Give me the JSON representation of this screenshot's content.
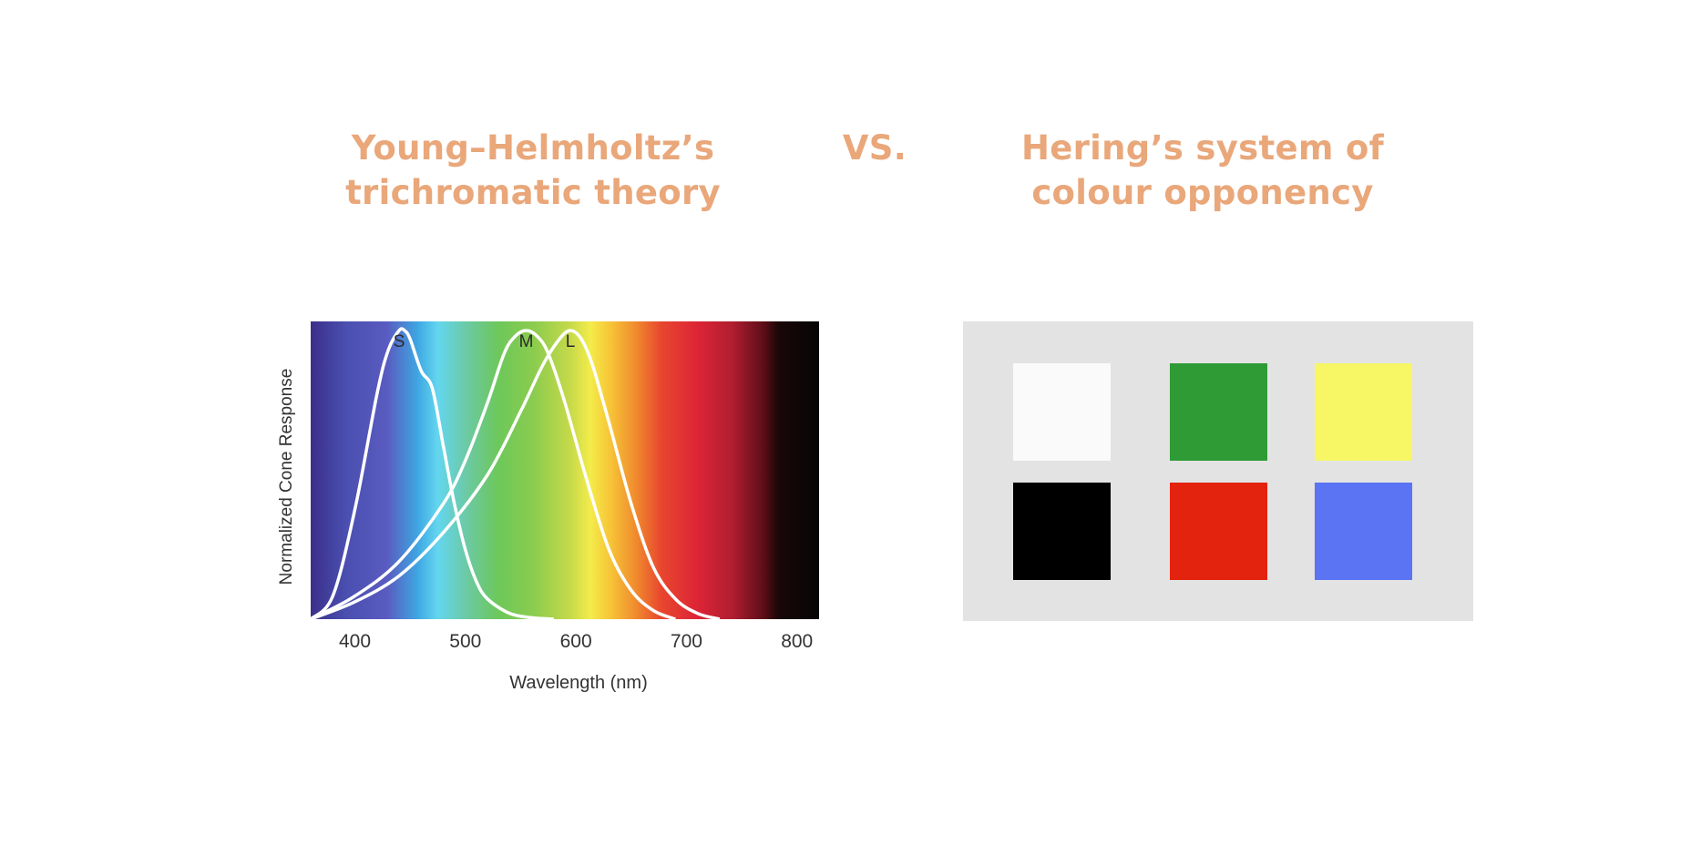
{
  "headings": {
    "left": [
      "Young–Helmholtz’s",
      "trichromatic theory"
    ],
    "vs": "VS.",
    "right": [
      "Hering’s system of",
      "colour opponency"
    ]
  },
  "chart_data": {
    "type": "line",
    "xlabel": "Wavelength (nm)",
    "ylabel": "Normalized Cone Response",
    "xlim": [
      360,
      820
    ],
    "ylim": [
      0,
      1
    ],
    "xticks": [
      400,
      500,
      600,
      700,
      800
    ],
    "background": "visible spectrum gradient",
    "grid": false,
    "line_color": "#ffffff",
    "series": [
      {
        "name": "S",
        "x": [
          360,
          380,
          400,
          420,
          430,
          440,
          445,
          450,
          460,
          470,
          480,
          490,
          500,
          510,
          520,
          540,
          560,
          580
        ],
        "y": [
          0.0,
          0.08,
          0.38,
          0.78,
          0.93,
          1.0,
          1.0,
          0.97,
          0.86,
          0.8,
          0.6,
          0.4,
          0.24,
          0.13,
          0.07,
          0.02,
          0.005,
          0.0
        ]
      },
      {
        "name": "M",
        "x": [
          360,
          400,
          440,
          480,
          500,
          520,
          535,
          545,
          555,
          565,
          575,
          590,
          610,
          630,
          650,
          670,
          690
        ],
        "y": [
          0.0,
          0.08,
          0.2,
          0.4,
          0.55,
          0.75,
          0.92,
          0.98,
          1.0,
          0.98,
          0.92,
          0.75,
          0.48,
          0.24,
          0.1,
          0.03,
          0.0
        ]
      },
      {
        "name": "L",
        "x": [
          360,
          400,
          440,
          480,
          520,
          550,
          570,
          585,
          595,
          605,
          615,
          630,
          650,
          670,
          690,
          710,
          730
        ],
        "y": [
          0.0,
          0.06,
          0.15,
          0.3,
          0.5,
          0.72,
          0.88,
          0.97,
          1.0,
          0.97,
          0.88,
          0.68,
          0.4,
          0.18,
          0.07,
          0.02,
          0.0
        ]
      }
    ]
  },
  "opponency_swatches": [
    {
      "name": "white",
      "color": "#fafafa"
    },
    {
      "name": "green",
      "color": "#2e9b35"
    },
    {
      "name": "yellow",
      "color": "#f7f765"
    },
    {
      "name": "black",
      "color": "#000000"
    },
    {
      "name": "red",
      "color": "#e3230e"
    },
    {
      "name": "blue",
      "color": "#5a74f4"
    }
  ]
}
